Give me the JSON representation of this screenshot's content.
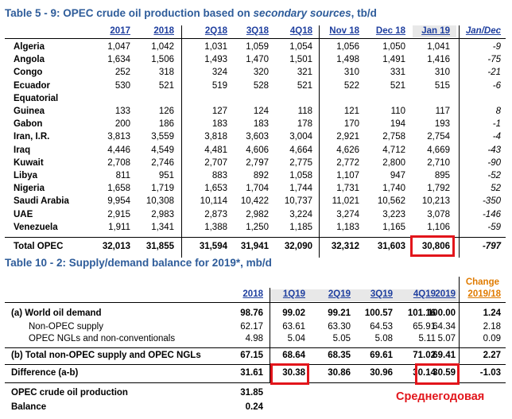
{
  "t5": {
    "title_a": "Table 5 - 9: OPEC crude oil production based on ",
    "title_b": "secondary sources",
    "title_c": ", tb/d",
    "headers": [
      "2017",
      "2018",
      "2Q18",
      "3Q18",
      "4Q18",
      "Nov 18",
      "Dec 18",
      "Jan 19",
      "Jan/Dec"
    ],
    "rows": [
      {
        "label": "Algeria",
        "v": [
          "1,047",
          "1,042",
          "1,031",
          "1,059",
          "1,054",
          "1,056",
          "1,050",
          "1,041",
          "-9"
        ]
      },
      {
        "label": "Angola",
        "v": [
          "1,634",
          "1,506",
          "1,493",
          "1,470",
          "1,501",
          "1,498",
          "1,491",
          "1,416",
          "-75"
        ]
      },
      {
        "label": "Congo",
        "v": [
          "252",
          "318",
          "324",
          "320",
          "321",
          "310",
          "331",
          "310",
          "-21"
        ]
      },
      {
        "label": "Ecuador",
        "v": [
          "530",
          "521",
          "519",
          "528",
          "521",
          "522",
          "521",
          "515",
          "-6"
        ]
      },
      {
        "label": "Equatorial",
        "v": [
          "",
          "",
          "",
          "",
          "",
          "",
          "",
          "",
          ""
        ]
      },
      {
        "label": "Guinea",
        "v": [
          "133",
          "126",
          "127",
          "124",
          "118",
          "121",
          "110",
          "117",
          "8"
        ]
      },
      {
        "label": "Gabon",
        "v": [
          "200",
          "186",
          "183",
          "183",
          "178",
          "170",
          "194",
          "193",
          "-1"
        ]
      },
      {
        "label": "Iran, I.R.",
        "v": [
          "3,813",
          "3,559",
          "3,818",
          "3,603",
          "3,004",
          "2,921",
          "2,758",
          "2,754",
          "-4"
        ]
      },
      {
        "label": "Iraq",
        "v": [
          "4,446",
          "4,549",
          "4,481",
          "4,606",
          "4,664",
          "4,626",
          "4,712",
          "4,669",
          "-43"
        ]
      },
      {
        "label": "Kuwait",
        "v": [
          "2,708",
          "2,746",
          "2,707",
          "2,797",
          "2,775",
          "2,772",
          "2,800",
          "2,710",
          "-90"
        ]
      },
      {
        "label": "Libya",
        "v": [
          "811",
          "951",
          "883",
          "892",
          "1,058",
          "1,107",
          "947",
          "895",
          "-52"
        ]
      },
      {
        "label": "Nigeria",
        "v": [
          "1,658",
          "1,719",
          "1,653",
          "1,704",
          "1,744",
          "1,731",
          "1,740",
          "1,792",
          "52"
        ]
      },
      {
        "label": "Saudi Arabia",
        "v": [
          "9,954",
          "10,308",
          "10,114",
          "10,422",
          "10,737",
          "11,021",
          "10,562",
          "10,213",
          "-350"
        ]
      },
      {
        "label": "UAE",
        "v": [
          "2,915",
          "2,983",
          "2,873",
          "2,982",
          "3,224",
          "3,274",
          "3,223",
          "3,078",
          "-146"
        ]
      },
      {
        "label": "Venezuela",
        "v": [
          "1,911",
          "1,341",
          "1,388",
          "1,250",
          "1,185",
          "1,183",
          "1,165",
          "1,106",
          "-59"
        ]
      }
    ],
    "total": {
      "label": "Total  OPEC",
      "v": [
        "32,013",
        "31,855",
        "31,594",
        "31,941",
        "32,090",
        "32,312",
        "31,603",
        "30,806",
        "-797"
      ]
    }
  },
  "t10": {
    "title": "Table 10 - 2: Supply/demand balance for 2019*, mb/d",
    "change_line1": "Change",
    "change_line2": "2019/18",
    "headers": [
      "2018",
      "1Q19",
      "2Q19",
      "3Q19",
      "4Q19",
      "2019"
    ],
    "rows": [
      {
        "label": "(a) World oil demand",
        "v": [
          "98.76",
          "99.02",
          "99.21",
          "100.57",
          "101.16",
          "100.00",
          "1.24"
        ]
      },
      {
        "label": "Non-OPEC supply",
        "v": [
          "62.17",
          "63.61",
          "63.30",
          "64.53",
          "65.91",
          "64.34",
          "2.18"
        ]
      },
      {
        "label": "OPEC NGLs and non-conventionals",
        "v": [
          "4.98",
          "5.04",
          "5.05",
          "5.08",
          "5.11",
          "5.07",
          "0.09"
        ]
      },
      {
        "label": "(b) Total non-OPEC supply and OPEC NGLs",
        "v": [
          "67.15",
          "68.64",
          "68.35",
          "69.61",
          "71.02",
          "69.41",
          "2.27"
        ]
      },
      {
        "label": "Difference (a-b)",
        "v": [
          "31.61",
          "30.38",
          "30.86",
          "30.96",
          "30.14",
          "30.59",
          "-1.03"
        ]
      },
      {
        "label": "OPEC crude oil production",
        "v": [
          "31.85",
          "",
          "",
          "",
          "",
          "",
          ""
        ]
      },
      {
        "label": "Balance",
        "v": [
          "0.24",
          "",
          "",
          "",
          "",
          "",
          ""
        ]
      }
    ]
  },
  "annotation": "Среднегодовая",
  "colors": {
    "title": "#2e5c9a",
    "header": "#1f3f9f",
    "change": "#e07b00",
    "highlight": "#e2151b"
  }
}
